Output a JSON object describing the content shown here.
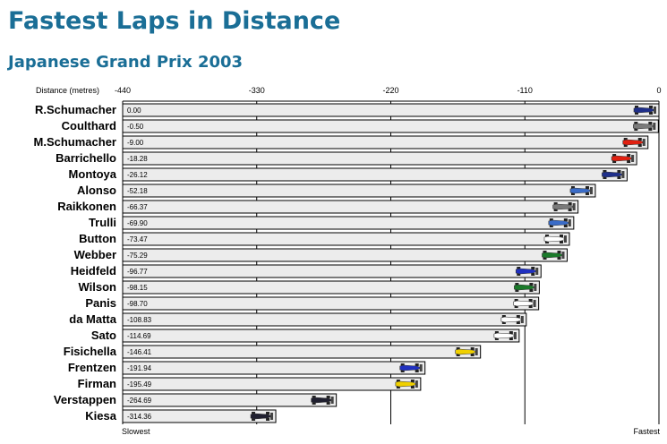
{
  "title": "Fastest Laps in Distance",
  "subtitle": "Japanese Grand Prix 2003",
  "chart_data": {
    "type": "bar",
    "orientation": "horizontal",
    "axis_label": "Distance (metres)",
    "xlim": [
      -440,
      0
    ],
    "ticks": [
      -440,
      -330,
      -220,
      -110,
      0
    ],
    "left_end_label": "Slowest",
    "right_end_label": "Fastest",
    "grid": true,
    "categories": [
      "R.Schumacher",
      "Coulthard",
      "M.Schumacher",
      "Barrichello",
      "Montoya",
      "Alonso",
      "Raikkonen",
      "Trulli",
      "Button",
      "Webber",
      "Heidfeld",
      "Wilson",
      "Panis",
      "da Matta",
      "Sato",
      "Fisichella",
      "Frentzen",
      "Firman",
      "Verstappen",
      "Kiesa"
    ],
    "values": [
      0.0,
      -0.5,
      -9.0,
      -18.28,
      -26.12,
      -52.18,
      -66.37,
      -69.9,
      -73.47,
      -75.29,
      -96.77,
      -98.15,
      -98.7,
      -108.83,
      -114.69,
      -146.41,
      -191.94,
      -195.49,
      -264.69,
      -314.36
    ],
    "value_labels": [
      "0.00",
      "-0.50",
      "-9.00",
      "-18.28",
      "-26.12",
      "-52.18",
      "-66.37",
      "-69.90",
      "-73.47",
      "-75.29",
      "-96.77",
      "-98.15",
      "-98.70",
      "-108.83",
      "-114.69",
      "-146.41",
      "-191.94",
      "-195.49",
      "-264.69",
      "-314.36"
    ],
    "car_colors": [
      "#1f2f8a",
      "#7a7a7a",
      "#e02010",
      "#e02010",
      "#1f2f8a",
      "#3a6cc8",
      "#7a7a7a",
      "#3a6cc8",
      "#ffffff",
      "#1a7a2a",
      "#2030c0",
      "#1a7a2a",
      "#ffffff",
      "#ffffff",
      "#ffffff",
      "#f0d000",
      "#2030c0",
      "#f0d000",
      "#202030",
      "#202030"
    ]
  }
}
